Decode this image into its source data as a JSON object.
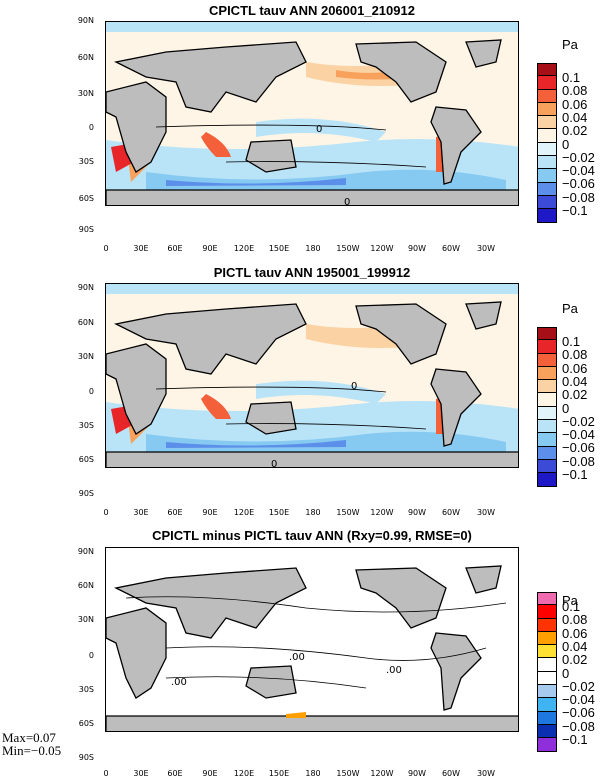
{
  "panels": [
    {
      "title": "CPICTL tauv ANN 206001_210912",
      "lat_labels": [
        "90N",
        "60N",
        "30N",
        "0",
        "30S",
        "60S",
        "90S"
      ],
      "lon_labels": [
        "0",
        "30E",
        "60E",
        "90E",
        "120E",
        "150E",
        "180",
        "150W",
        "120W",
        "90W",
        "60W",
        "30W"
      ],
      "unit": "Pa",
      "cbar_labels": [
        "0.1",
        "0.08",
        "0.06",
        "0.04",
        "0.02",
        "0",
        "−0.02",
        "−0.04",
        "−0.06",
        "−0.08",
        "−0.1"
      ],
      "cbar_colors": [
        "#a50f15",
        "#e8262a",
        "#f4603a",
        "#f8a15c",
        "#fbd2a3",
        "#fff5e6",
        "#e1f4fa",
        "#b9e3f7",
        "#86c9f1",
        "#5b8fea",
        "#3b4bd8",
        "#1f18c6"
      ]
    },
    {
      "title": "PICTL tauv ANN 195001_199912",
      "lat_labels": [
        "90N",
        "60N",
        "30N",
        "0",
        "30S",
        "60S",
        "90S"
      ],
      "lon_labels": [
        "0",
        "30E",
        "60E",
        "90E",
        "120E",
        "150E",
        "180",
        "150W",
        "120W",
        "90W",
        "60W",
        "30W"
      ],
      "unit": "Pa",
      "cbar_labels": [
        "0.1",
        "0.08",
        "0.06",
        "0.04",
        "0.02",
        "0",
        "−0.02",
        "−0.04",
        "−0.06",
        "−0.08",
        "−0.1"
      ],
      "cbar_colors": [
        "#a50f15",
        "#e8262a",
        "#f4603a",
        "#f8a15c",
        "#fbd2a3",
        "#fff5e6",
        "#e1f4fa",
        "#b9e3f7",
        "#86c9f1",
        "#5b8fea",
        "#3b4bd8",
        "#1f18c6"
      ]
    },
    {
      "title": "CPICTL minus PICTL tauv ANN (Rxy=0.99, RMSE=0)",
      "lat_labels": [
        "90N",
        "60N",
        "30N",
        "0",
        "30S",
        "60S",
        "90S"
      ],
      "lon_labels": [
        "0",
        "30E",
        "60E",
        "90E",
        "120E",
        "150E",
        "180",
        "150W",
        "120W",
        "90W",
        "60W",
        "30W"
      ],
      "unit": "Pa",
      "cbar_labels": [
        "0.1",
        "0.08",
        "0.06",
        "0.04",
        "0.02",
        "0",
        "−0.02",
        "−0.04",
        "−0.06",
        "−0.08",
        "−0.1"
      ],
      "cbar_colors": [
        "#f06ab0",
        "#ff0000",
        "#ff3300",
        "#ffa000",
        "#ffe033",
        "#ffffff",
        "#ffffff",
        "#a7cbef",
        "#3fb4f0",
        "#1e78e0",
        "#0a2fb0",
        "#8f2fdb"
      ],
      "stats_max": "Max=0.07",
      "stats_min": "Min=−0.05"
    }
  ],
  "contour_labels": {
    "p1": "0",
    "p1b": "0",
    "p2": "0",
    "p2b": "0",
    "p3": ".00",
    "p3b": ".00",
    "p3c": ".00"
  },
  "colors": {
    "land": "#bdbdbd",
    "ocean_neutral": "#fff5e6"
  }
}
